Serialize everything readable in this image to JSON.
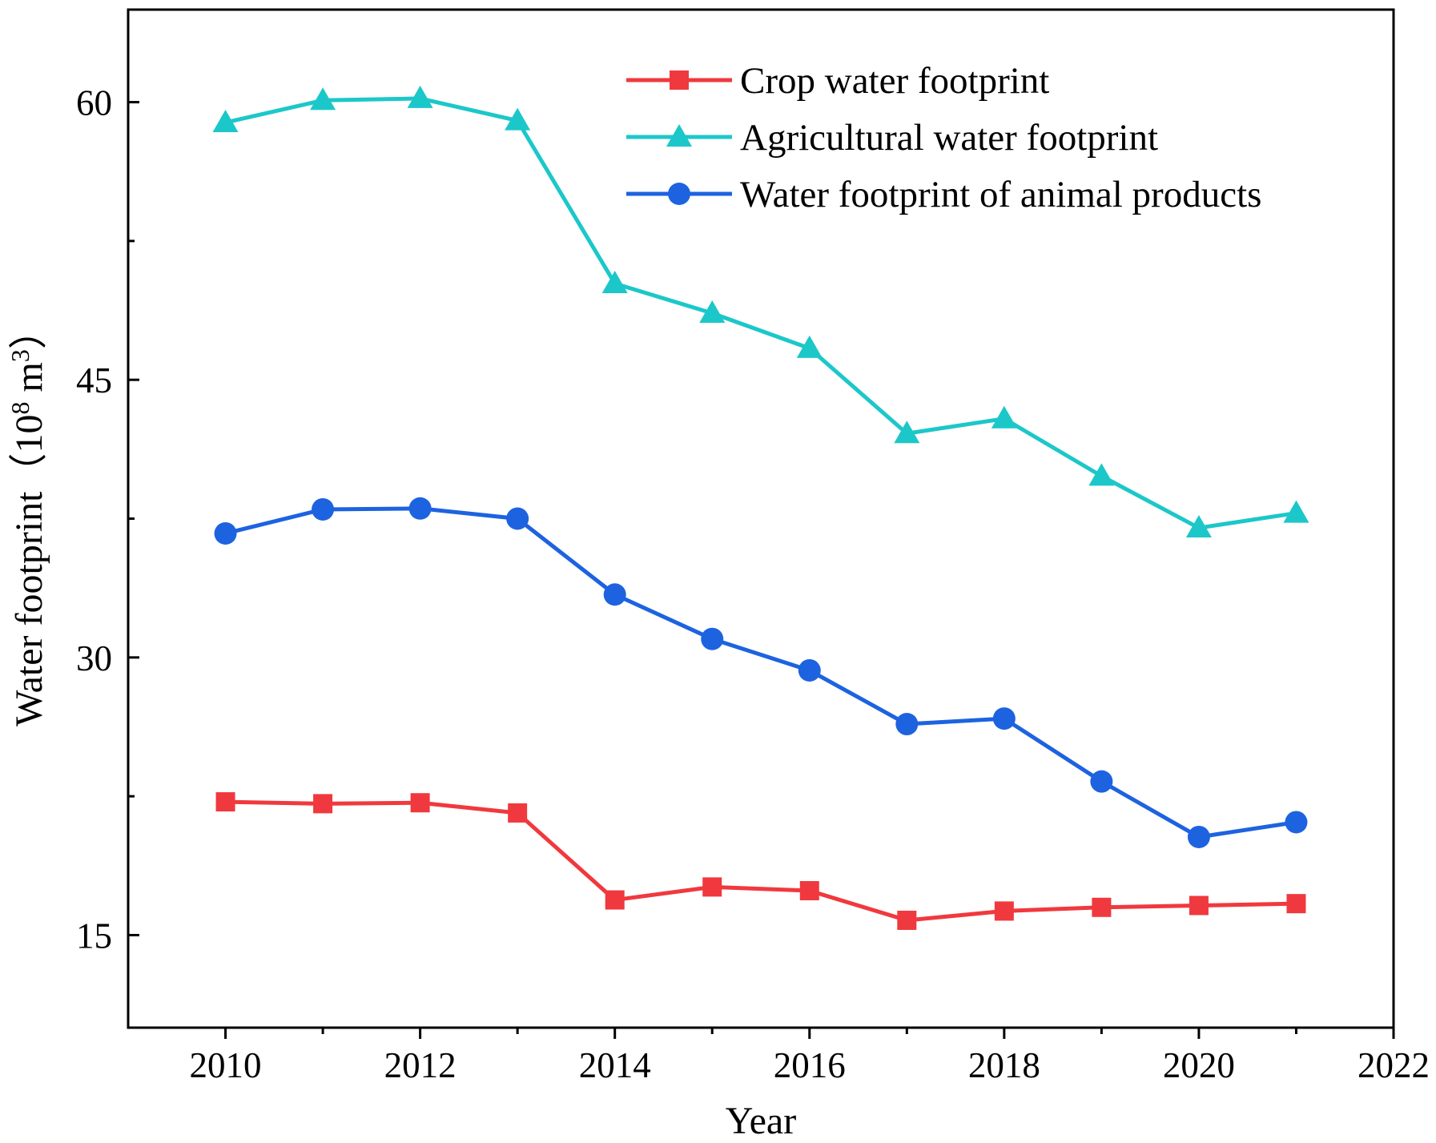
{
  "chart_data": {
    "type": "line",
    "title": "",
    "xlabel": "Year",
    "ylabel": "Water footprint（10",
    "ylabel_superscript": "8",
    "ylabel_unit": " m",
    "ylabel_unit_superscript": "3",
    "ylabel_close": "）",
    "x": [
      2010,
      2011,
      2012,
      2013,
      2014,
      2015,
      2016,
      2017,
      2018,
      2019,
      2020,
      2021
    ],
    "xlim": [
      2009,
      2022
    ],
    "ylim": [
      10,
      65
    ],
    "xticks": [
      "2010",
      "2012",
      "2014",
      "2016",
      "2018",
      "2020",
      "2022"
    ],
    "yticks": [
      "15",
      "30",
      "45",
      "60"
    ],
    "legend_position": "top-right",
    "grid": false,
    "series": [
      {
        "name": "Crop water footprint",
        "marker": "square",
        "color": "#f0393e",
        "values": [
          22.2,
          22.1,
          22.15,
          21.6,
          16.9,
          17.6,
          17.4,
          15.8,
          16.3,
          16.5,
          16.6,
          16.7
        ]
      },
      {
        "name": "Agricultural water footprint",
        "marker": "triangle",
        "color": "#1cc7c9",
        "values": [
          58.9,
          60.1,
          60.2,
          59.0,
          50.2,
          48.6,
          46.7,
          42.1,
          42.9,
          39.8,
          37.0,
          37.8
        ]
      },
      {
        "name": "Water footprint of animal products",
        "marker": "circle",
        "color": "#1d63e0",
        "values": [
          36.7,
          38.0,
          38.05,
          37.5,
          33.4,
          31.0,
          29.3,
          26.4,
          26.7,
          23.3,
          20.3,
          21.1
        ]
      }
    ]
  }
}
